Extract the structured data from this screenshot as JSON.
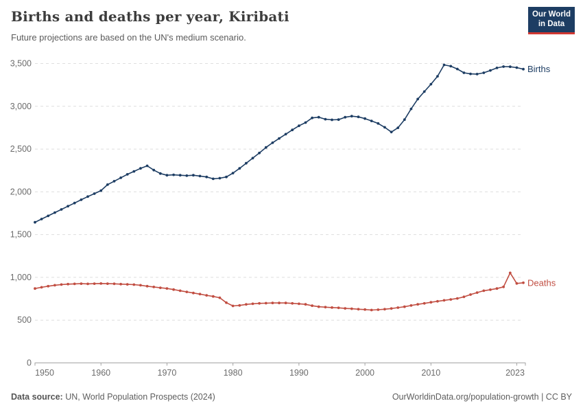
{
  "header": {
    "title": "Births and deaths per year, Kiribati",
    "subtitle": "Future projections are based on the UN's medium scenario.",
    "logo": {
      "line1": "Our World",
      "line2": "in Data"
    }
  },
  "footer": {
    "source_label": "Data source:",
    "source_text": " UN, World Population Prospects (2024)",
    "right_text": "OurWorldinData.org/population-growth | CC BY"
  },
  "colors": {
    "births": "#1d3d63",
    "deaths": "#c14e42",
    "grid": "#dedede",
    "axis": "#a3a3a3",
    "tick_label": "#6b6b6b",
    "logo_bg": "#1d3d63",
    "logo_accent": "#d13832"
  },
  "chart_data": {
    "type": "line",
    "title": "Births and deaths per year, Kiribati",
    "subtitle": "Future projections are based on the UN's medium scenario.",
    "xlabel": "",
    "ylabel": "",
    "xlim": [
      1950,
      2024
    ],
    "ylim": [
      0,
      3500
    ],
    "grid": "horizontal-dashed",
    "legend": "end-of-line-labels",
    "xticks": [
      {
        "year": 1950,
        "label": "1950"
      },
      {
        "year": 1960,
        "label": "1960"
      },
      {
        "year": 1970,
        "label": "1970"
      },
      {
        "year": 1980,
        "label": "1980"
      },
      {
        "year": 1990,
        "label": "1990"
      },
      {
        "year": 2000,
        "label": "2000"
      },
      {
        "year": 2010,
        "label": "2010"
      },
      {
        "year": 2023,
        "label": "2023"
      }
    ],
    "yticks": [
      {
        "value": 0,
        "label": "0"
      },
      {
        "value": 500,
        "label": "500"
      },
      {
        "value": 1000,
        "label": "1,000"
      },
      {
        "value": 1500,
        "label": "1,500"
      },
      {
        "value": 2000,
        "label": "2,000"
      },
      {
        "value": 2500,
        "label": "2,500"
      },
      {
        "value": 3000,
        "label": "3,000"
      },
      {
        "value": 3500,
        "label": "3,500"
      }
    ],
    "x": [
      1950,
      1951,
      1952,
      1953,
      1954,
      1955,
      1956,
      1957,
      1958,
      1959,
      1960,
      1961,
      1962,
      1963,
      1964,
      1965,
      1966,
      1967,
      1968,
      1969,
      1970,
      1971,
      1972,
      1973,
      1974,
      1975,
      1976,
      1977,
      1978,
      1979,
      1980,
      1981,
      1982,
      1983,
      1984,
      1985,
      1986,
      1987,
      1988,
      1989,
      1990,
      1991,
      1992,
      1993,
      1994,
      1995,
      1996,
      1997,
      1998,
      1999,
      2000,
      2001,
      2002,
      2003,
      2004,
      2005,
      2006,
      2007,
      2008,
      2009,
      2010,
      2011,
      2012,
      2013,
      2014,
      2015,
      2016,
      2017,
      2018,
      2019,
      2020,
      2021,
      2022,
      2023,
      2024
    ],
    "series": [
      {
        "name": "Births",
        "color": "#1d3d63",
        "values": [
          1640,
          1678,
          1715,
          1753,
          1790,
          1828,
          1865,
          1903,
          1940,
          1975,
          2010,
          2080,
          2120,
          2160,
          2200,
          2235,
          2270,
          2300,
          2250,
          2210,
          2190,
          2195,
          2190,
          2185,
          2190,
          2180,
          2170,
          2148,
          2155,
          2170,
          2215,
          2270,
          2330,
          2390,
          2450,
          2515,
          2570,
          2620,
          2670,
          2720,
          2768,
          2806,
          2860,
          2868,
          2845,
          2838,
          2840,
          2868,
          2880,
          2872,
          2852,
          2825,
          2795,
          2750,
          2695,
          2745,
          2840,
          2965,
          3080,
          3168,
          3254,
          3347,
          3480,
          3465,
          3432,
          3388,
          3375,
          3372,
          3388,
          3415,
          3445,
          3460,
          3458,
          3448,
          3430
        ]
      },
      {
        "name": "Deaths",
        "color": "#c14e42",
        "values": [
          865,
          880,
          893,
          904,
          912,
          917,
          920,
          922,
          920,
          922,
          924,
          922,
          921,
          917,
          914,
          911,
          904,
          893,
          884,
          874,
          866,
          853,
          840,
          826,
          813,
          800,
          786,
          773,
          758,
          700,
          662,
          668,
          680,
          687,
          692,
          694,
          697,
          697,
          697,
          692,
          687,
          681,
          665,
          653,
          648,
          643,
          640,
          633,
          629,
          624,
          620,
          614,
          618,
          624,
          632,
          642,
          653,
          667,
          681,
          692,
          705,
          716,
          727,
          738,
          750,
          768,
          795,
          818,
          840,
          852,
          865,
          885,
          1048,
          925,
          933
        ]
      }
    ]
  }
}
